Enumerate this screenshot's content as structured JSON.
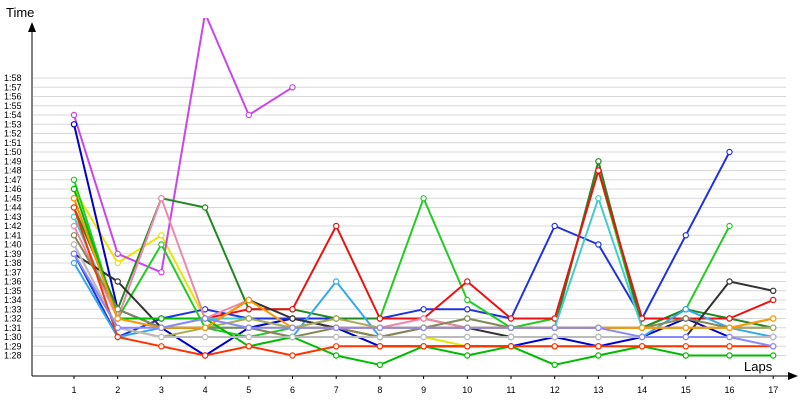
{
  "chart_data": {
    "type": "line",
    "ylabel": "Time",
    "xlabel": "Laps",
    "x": [
      1,
      2,
      3,
      4,
      5,
      6,
      7,
      8,
      9,
      10,
      11,
      12,
      13,
      14,
      15,
      16,
      17
    ],
    "ylim": [
      87.0,
      119.5
    ],
    "y_ticks": [
      "1:28",
      "1:29",
      "1:30",
      "1:31",
      "1:32",
      "1:33",
      "1:34",
      "1:35",
      "1:36",
      "1:37",
      "1:38",
      "1:39",
      "1:40",
      "1:41",
      "1:42",
      "1:43",
      "1:44",
      "1:45",
      "1:46",
      "1:47",
      "1:48",
      "1:49",
      "1:50",
      "1:51",
      "1:52",
      "1:53",
      "1:54",
      "1:55",
      "1:56",
      "1:57",
      "1:58"
    ],
    "grid": true,
    "legend": "none",
    "series": [
      {
        "color": "#e6e600",
        "values": [
          106,
          98,
          101,
          92,
          91,
          91,
          91,
          90,
          90,
          89,
          89,
          89,
          89,
          89,
          89,
          89,
          null
        ]
      },
      {
        "color": "#cc44ee",
        "values": [
          114,
          99,
          97,
          125,
          114,
          117,
          null,
          null,
          null,
          null,
          null,
          null,
          null,
          null,
          null,
          null,
          null
        ]
      },
      {
        "color": "#0000cc",
        "values": [
          113,
          93,
          91,
          88,
          91,
          92,
          91,
          89,
          89,
          89,
          89,
          90,
          89,
          90,
          92,
          90,
          90
        ]
      },
      {
        "color": "#2233dd",
        "values": [
          99,
          90,
          92,
          93,
          92,
          92,
          92,
          92,
          93,
          93,
          92,
          102,
          100,
          92,
          101,
          110,
          null
        ]
      },
      {
        "color": "#22cc22",
        "values": [
          107,
          92,
          100,
          91,
          90,
          91,
          92,
          92,
          105,
          94,
          91,
          92,
          108,
          91,
          93,
          102,
          null
        ]
      },
      {
        "color": "#228822",
        "values": [
          104,
          93,
          105,
          104,
          93,
          93,
          92,
          92,
          92,
          91,
          91,
          91,
          109,
          91,
          93,
          92,
          91
        ]
      },
      {
        "color": "#ee1111",
        "values": [
          105,
          92,
          92,
          92,
          93,
          93,
          102,
          92,
          92,
          96,
          92,
          92,
          108,
          92,
          92,
          92,
          94
        ]
      },
      {
        "color": "#33aaee",
        "values": [
          98,
          90,
          91,
          91,
          91,
          90,
          96,
          90,
          90,
          90,
          90,
          90,
          90,
          90,
          93,
          91,
          90
        ]
      },
      {
        "color": "#44cccc",
        "values": [
          103,
          92,
          91,
          92,
          92,
          91,
          91,
          91,
          91,
          92,
          91,
          91,
          105,
          91,
          91,
          91,
          91
        ]
      },
      {
        "color": "#ee88aa",
        "values": [
          102,
          92,
          105,
          92,
          94,
          92,
          91,
          91,
          92,
          91,
          91,
          91,
          91,
          91,
          91,
          91,
          91
        ]
      },
      {
        "color": "#333333",
        "values": [
          99,
          96,
          91,
          91,
          94,
          92,
          91,
          90,
          91,
          91,
          90,
          90,
          90,
          90,
          90,
          96,
          95
        ]
      },
      {
        "color": "#aaaa55",
        "values": [
          100,
          91,
          90,
          91,
          92,
          91,
          92,
          91,
          91,
          91,
          91,
          91,
          91,
          91,
          91,
          91,
          91
        ]
      },
      {
        "color": "#888855",
        "values": [
          101,
          93,
          91,
          91,
          91,
          90,
          91,
          90,
          91,
          92,
          91,
          91,
          91,
          91,
          92,
          91,
          92
        ]
      },
      {
        "color": "#00bb00",
        "values": [
          106,
          92,
          92,
          92,
          89,
          90,
          88,
          87,
          89,
          88,
          89,
          87,
          88,
          89,
          88,
          88,
          88
        ]
      },
      {
        "color": "#bbbbbb",
        "values": [
          100,
          91,
          90,
          90,
          90,
          90,
          90,
          90,
          90,
          90,
          90,
          90,
          90,
          90,
          90,
          90,
          90
        ]
      },
      {
        "color": "#ff9900",
        "values": [
          105,
          92,
          91,
          91,
          94,
          91,
          91,
          91,
          91,
          91,
          91,
          91,
          91,
          91,
          91,
          91,
          92
        ]
      },
      {
        "color": "#ff3300",
        "values": [
          104,
          90,
          89,
          88,
          89,
          88,
          89,
          89,
          89,
          89,
          89,
          89,
          89,
          89,
          89,
          89,
          89
        ]
      },
      {
        "color": "#8888ff",
        "values": [
          99,
          91,
          91,
          92,
          91,
          91,
          91,
          91,
          91,
          91,
          91,
          91,
          91,
          90,
          90,
          90,
          89
        ]
      }
    ]
  }
}
